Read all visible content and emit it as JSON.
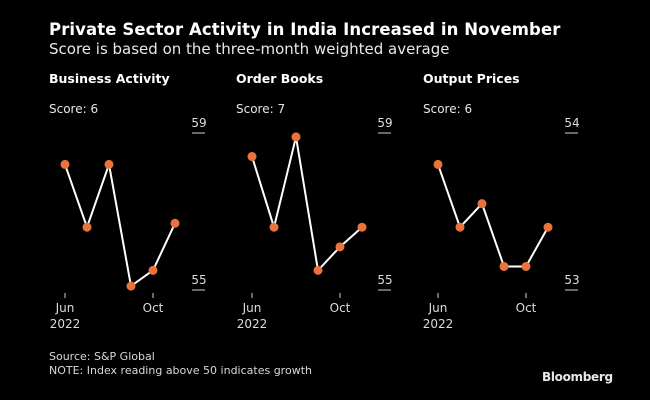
{
  "header": {
    "title": "Private Sector Activity in India Increased in November",
    "subtitle": "Score is based on the three-month weighted average"
  },
  "footer": {
    "source": "Source: S&P Global",
    "note": "NOTE: Index reading above 50 indicates growth",
    "brand": "Bloomberg"
  },
  "colors": {
    "background": "#000000",
    "line": "#ffffff",
    "marker": "#e8743b"
  },
  "chart_data": [
    {
      "type": "line",
      "title": "Business Activity",
      "score_label": "Score: 6",
      "x": [
        "Jun 2022",
        "Jul 2022",
        "Aug 2022",
        "Sep 2022",
        "Oct 2022",
        "Nov 2022"
      ],
      "x_tick_labels": [
        {
          "index": 0,
          "label": "Jun",
          "sublabel": "2022"
        },
        {
          "index": 4,
          "label": "Oct",
          "sublabel": ""
        }
      ],
      "values": [
        58.2,
        56.6,
        58.2,
        55.1,
        55.5,
        56.7
      ],
      "ylim": [
        55,
        59
      ],
      "y_tick_labels": [
        "59",
        "55"
      ],
      "grid": false
    },
    {
      "type": "line",
      "title": "Order Books",
      "score_label": "Score: 7",
      "x": [
        "Jun 2022",
        "Jul 2022",
        "Aug 2022",
        "Sep 2022",
        "Oct 2022",
        "Nov 2022"
      ],
      "x_tick_labels": [
        {
          "index": 0,
          "label": "Jun",
          "sublabel": "2022"
        },
        {
          "index": 4,
          "label": "Oct",
          "sublabel": ""
        }
      ],
      "values": [
        58.4,
        56.6,
        58.9,
        55.5,
        56.1,
        56.6
      ],
      "ylim": [
        55,
        59
      ],
      "y_tick_labels": [
        "59",
        "55"
      ],
      "grid": false
    },
    {
      "type": "line",
      "title": "Output Prices",
      "score_label": "Score: 6",
      "x": [
        "Jun 2022",
        "Jul 2022",
        "Aug 2022",
        "Sep 2022",
        "Oct 2022",
        "Nov 2022"
      ],
      "x_tick_labels": [
        {
          "index": 0,
          "label": "Jun",
          "sublabel": "2022"
        },
        {
          "index": 4,
          "label": "Oct",
          "sublabel": ""
        }
      ],
      "values": [
        53.8,
        53.4,
        53.55,
        53.15,
        53.15,
        53.4
      ],
      "ylim": [
        53,
        54
      ],
      "y_tick_labels": [
        "54",
        "53"
      ],
      "grid": false
    }
  ]
}
